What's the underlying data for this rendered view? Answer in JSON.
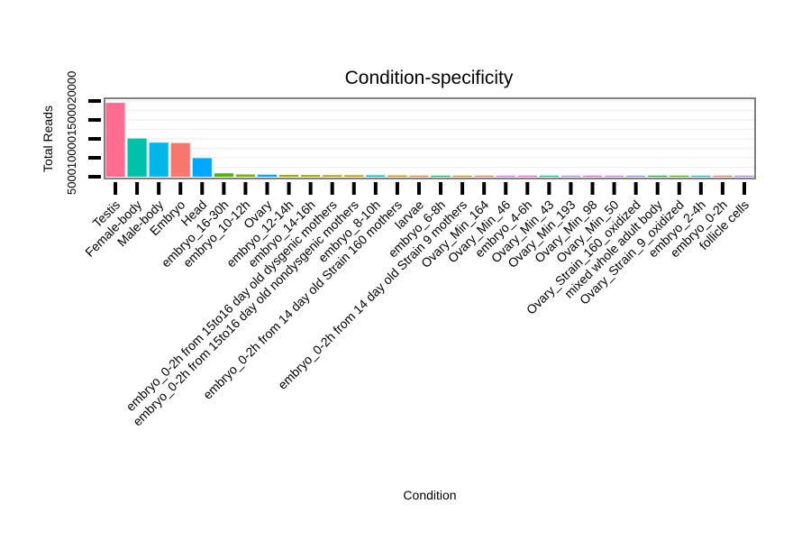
{
  "chart_data": {
    "type": "bar",
    "title": "Condition-specificity",
    "xlabel": "Condition",
    "ylabel": "Total Reads",
    "ytick_labels_raw": "5000100001500020000",
    "y_ticks": [
      0,
      5000,
      10000,
      15000,
      20000
    ],
    "ylim": [
      0,
      20000
    ],
    "grid": true,
    "legend": "none",
    "categories": [
      "Testis",
      "Female-body",
      "Male-body",
      "Embryo",
      "Head",
      "embryo_16-30h",
      "embryo_10-12h",
      "Ovary",
      "embryo_12-14h",
      "embryo_14-16h",
      "embryo_0-2h from 15to16 day old dysgenic mothers",
      "embryo_0-2h from 15to16 day old nondysgenic mothers",
      "embryo_8-10h",
      "embryo_0-2h from 14 day old Strain 160 mothers",
      "larvae",
      "embryo_6-8h",
      "embryo_0-2h from 14 day old Strain 9 mothers",
      "Ovary_Min_164",
      "Ovary_Min_46",
      "embryo_4-6h",
      "Ovary_Min_43",
      "Ovary_Min_193",
      "Ovary_Min_98",
      "Ovary_Min_50",
      "Ovary_Strain_160_oxidized",
      "mixed whole adult body",
      "Ovary_Strain_9_oxidized",
      "embryo_2-4h",
      "embryo_0-2h",
      "follicle cells"
    ],
    "values": [
      19500,
      10100,
      9000,
      8900,
      4900,
      900,
      600,
      550,
      500,
      450,
      420,
      400,
      380,
      350,
      300,
      280,
      260,
      240,
      220,
      200,
      150,
      60,
      50,
      40,
      30,
      20,
      15,
      10,
      8,
      5
    ],
    "colors": [
      "#ff6c91",
      "#00c1aa",
      "#00b6eb",
      "#f8766d",
      "#00a9ff",
      "#53b400",
      "#7cae00",
      "#00a5ff",
      "#9ca700",
      "#a3a500",
      "#bb9d00",
      "#c49a00",
      "#00bfc4",
      "#d89000",
      "#ee8044",
      "#00bd5c",
      "#de8c00",
      "#f37b59",
      "#e76bf3",
      "#fd61d1",
      "#00c08b",
      "#b385ff",
      "#ff61c9",
      "#c77cff",
      "#8494ff",
      "#00ba38",
      "#39b600",
      "#00bfc4",
      "#f8766d",
      "#a58aff"
    ]
  }
}
